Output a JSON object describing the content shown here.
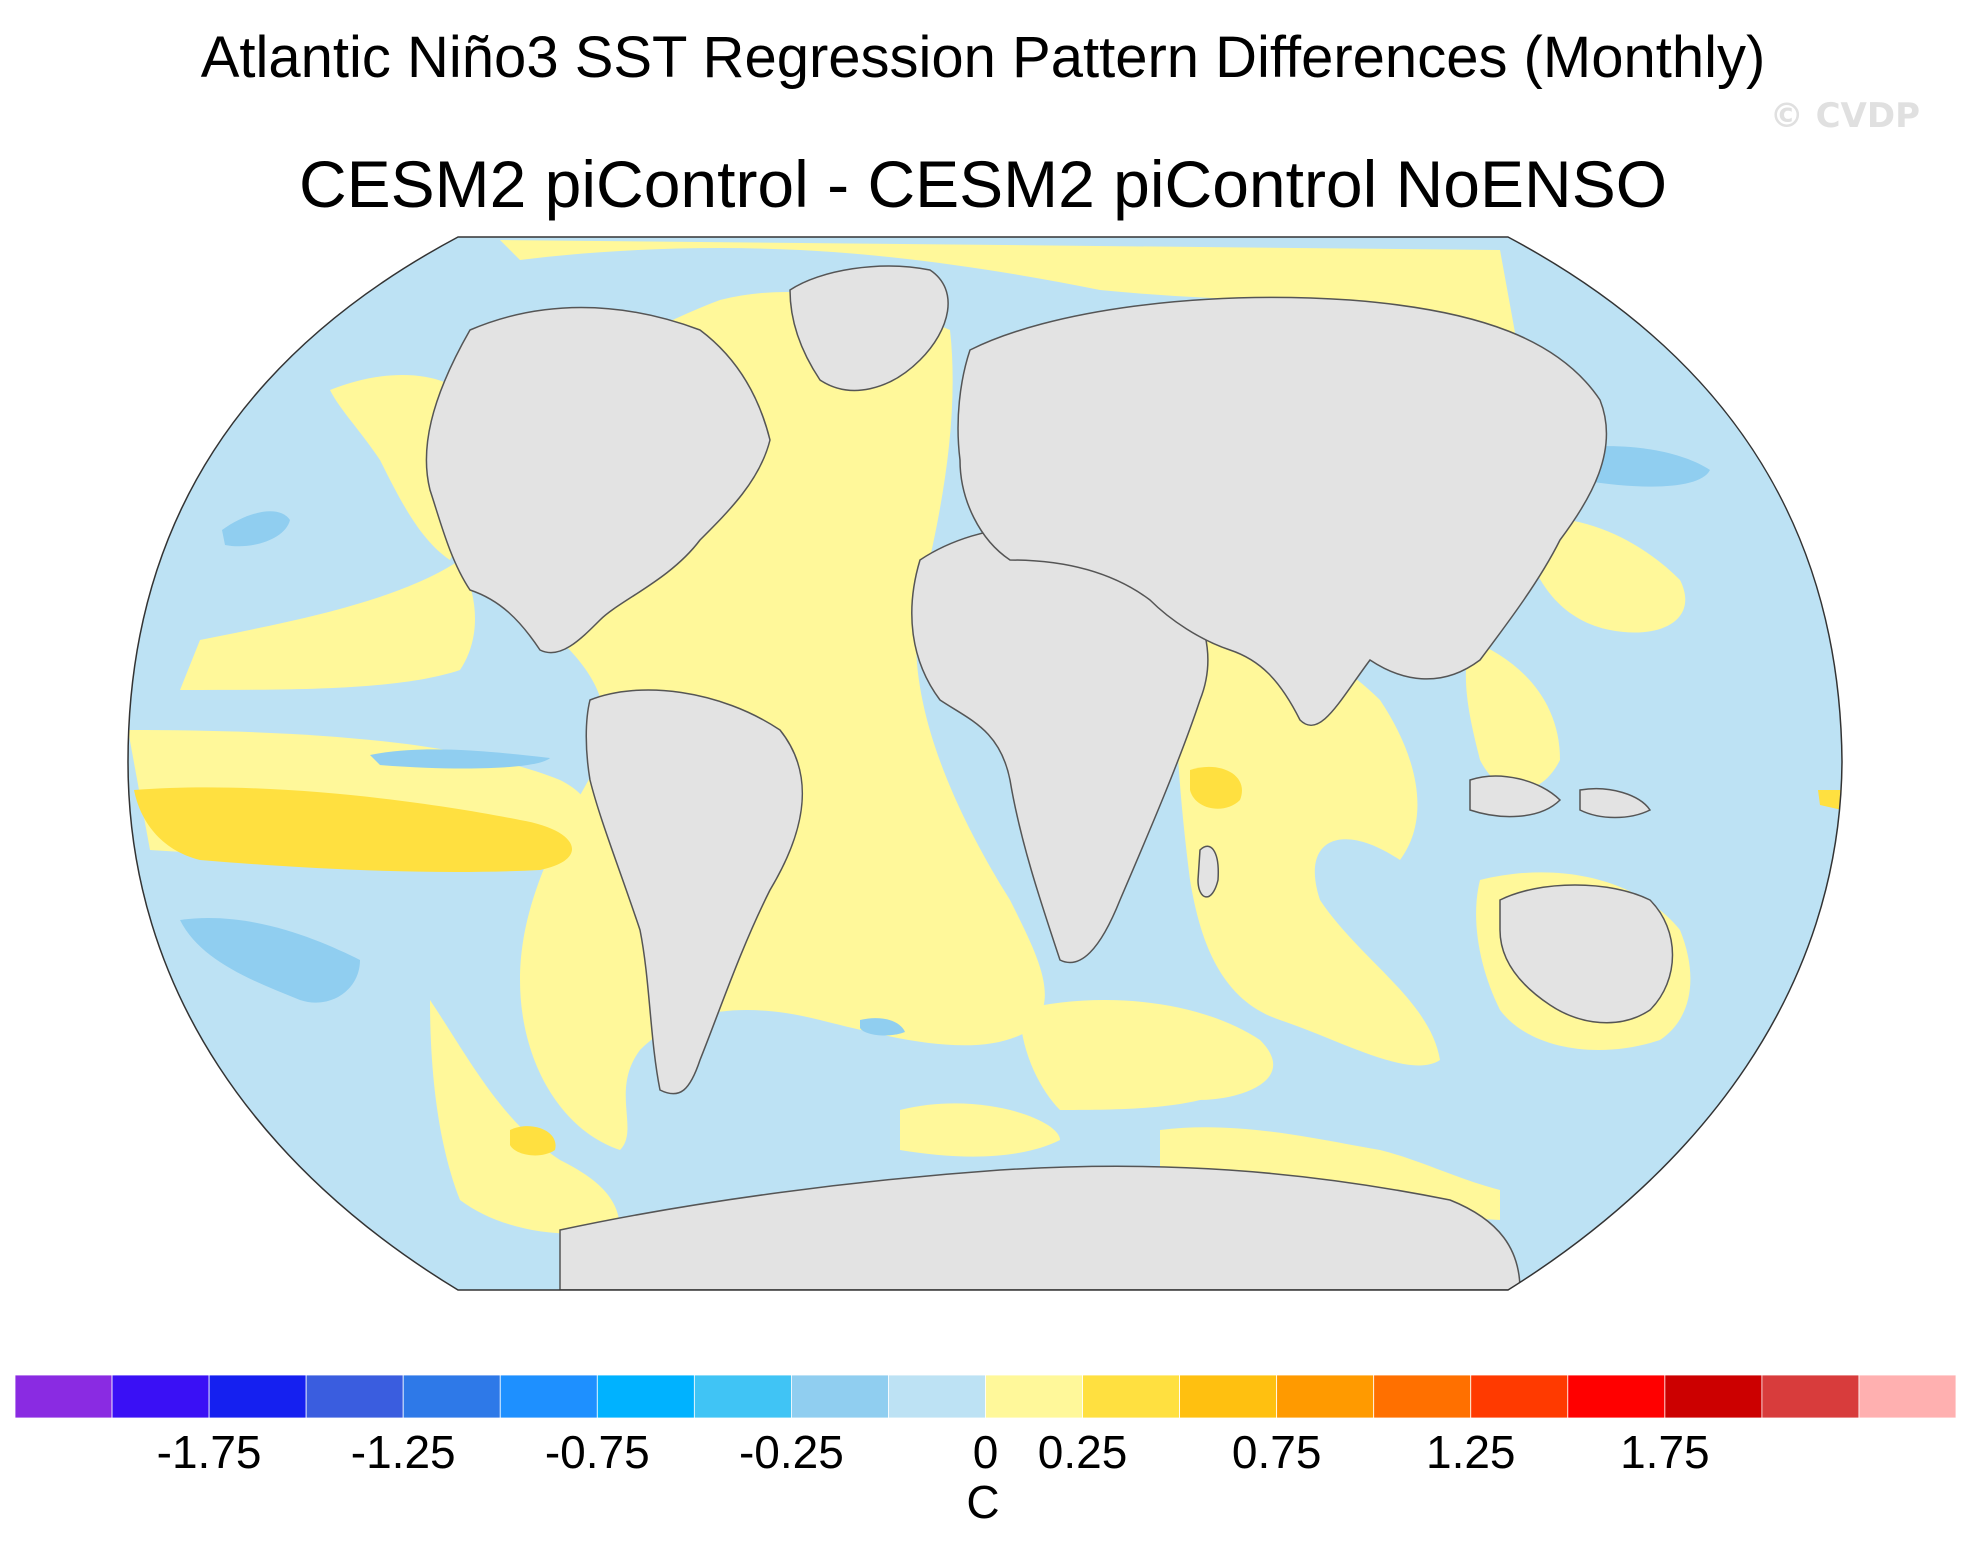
{
  "title": "Atlantic Niño3 SST Regression Pattern Differences (Monthly)",
  "subtitle": "CESM2 piControl - CESM2 piControl NoENSO",
  "watermark": "© CVDP",
  "colorbar": {
    "unit": "C",
    "colors": [
      "#8a2be2",
      "#3a10f5",
      "#1520f0",
      "#3a5ddf",
      "#2e79e8",
      "#1e90ff",
      "#00b2ff",
      "#40c4f5",
      "#90cef0",
      "#bde2f4",
      "#fff89a",
      "#ffe040",
      "#ffc010",
      "#ff9a00",
      "#ff7000",
      "#ff3a00",
      "#ff0000",
      "#cc0000",
      "#d83c3c",
      "#ffb0b0"
    ],
    "tick_labels": [
      "-1.75",
      "-1.25",
      "-0.75",
      "-0.25",
      "0",
      "0.25",
      "0.75",
      "1.25",
      "1.75"
    ],
    "tick_boundary_index": [
      2,
      4,
      6,
      8,
      10,
      11,
      13,
      15,
      17
    ]
  },
  "map": {
    "projection": "Robinson-like global",
    "colors": {
      "ocean_base": "#bde2f4",
      "positive_small": "#fff89a",
      "positive_medium": "#ffe040",
      "negative_medium": "#90cef0",
      "land": "#e3e3e3",
      "coast": "#555555"
    }
  }
}
